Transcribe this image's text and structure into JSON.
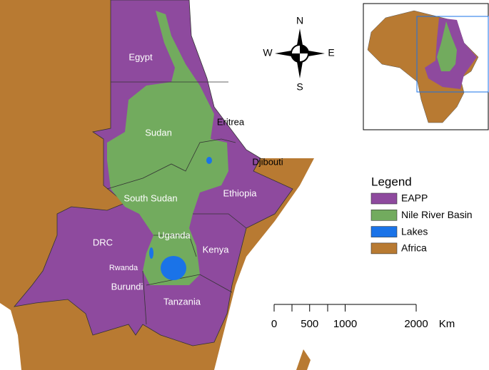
{
  "countries": [
    {
      "label": "Egypt",
      "color": "#ffffff"
    },
    {
      "label": "Sudan",
      "color": "#ffffff"
    },
    {
      "label": "Eritrea",
      "color": "#000000"
    },
    {
      "label": "Djibouti",
      "color": "#000000"
    },
    {
      "label": "South Sudan",
      "color": "#ffffff"
    },
    {
      "label": "Ethiopia",
      "color": "#ffffff"
    },
    {
      "label": "Uganda",
      "color": "#ffffff"
    },
    {
      "label": "DRC",
      "color": "#ffffff"
    },
    {
      "label": "Kenya",
      "color": "#ffffff"
    },
    {
      "label": "Rwanda",
      "color": "#ffffff"
    },
    {
      "label": "Burundi",
      "color": "#ffffff"
    },
    {
      "label": "Tanzania",
      "color": "#ffffff"
    }
  ],
  "compass": {
    "north": "N",
    "east": "E",
    "south": "S",
    "west": "W"
  },
  "legend": {
    "title": "Legend",
    "items": [
      {
        "label": "EAPP",
        "color": "#8e4a9e"
      },
      {
        "label": "Nile River Basin",
        "color": "#72ab5e"
      },
      {
        "label": "Lakes",
        "color": "#1a73e8"
      },
      {
        "label": "Africa",
        "color": "#b87a32"
      }
    ]
  },
  "scale": {
    "ticks": [
      0,
      500,
      1000,
      2000
    ],
    "unit": "Km"
  }
}
